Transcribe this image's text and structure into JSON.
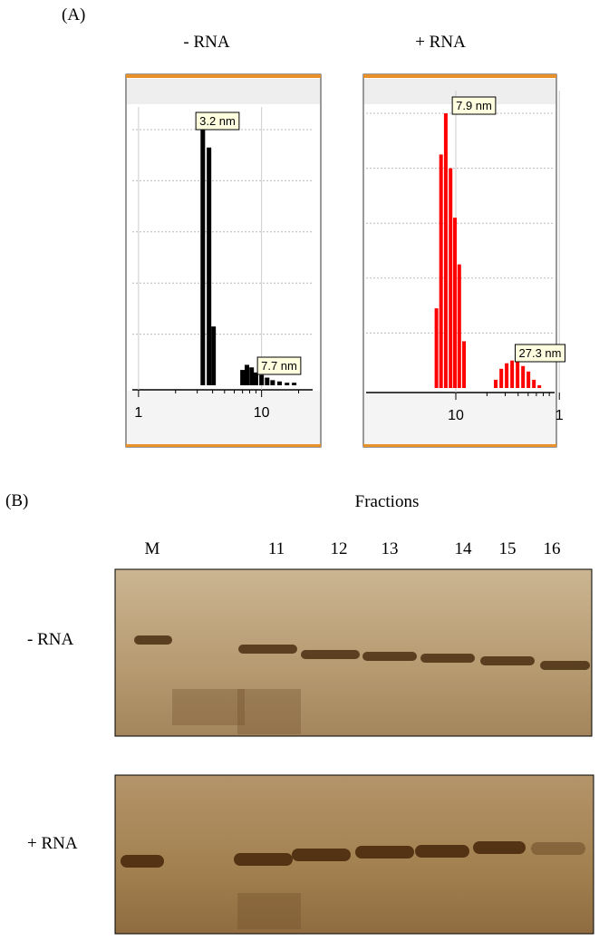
{
  "panel_labels": [
    "(A)",
    "(B)"
  ],
  "chart_data": [
    {
      "type": "bar",
      "title": "- RNA",
      "log_x": true,
      "grid": true,
      "color": "#000000",
      "xlim": [
        0.89,
        26
      ],
      "xticks": [
        1,
        10
      ],
      "ylim": [
        0,
        100
      ],
      "x": [
        3.33,
        3.74,
        4.07,
        7.0,
        7.6,
        8.3,
        9.0,
        10.0,
        11.1,
        12.3,
        14.0,
        16.1,
        18.4
      ],
      "values": [
        100,
        93,
        23,
        6,
        8,
        7,
        5,
        4,
        3,
        2,
        1.5,
        1,
        1
      ],
      "annotations": [
        "3.2 nm",
        "7.7 nm"
      ]
    },
    {
      "type": "bar",
      "title": "+ RNA",
      "log_x": true,
      "grid": true,
      "color": "#ff0000",
      "xlim": [
        1.36,
        90
      ],
      "xticks": [
        10,
        {
          "value": 100,
          "label": "1"
        }
      ],
      "ylim": [
        0,
        100
      ],
      "x": [
        6.5,
        7.2,
        8.0,
        8.9,
        9.8,
        10.8,
        12.0,
        24.3,
        27.5,
        31.0,
        35.0,
        39.5,
        44.6,
        50.3,
        56.8,
        64.1
      ],
      "values": [
        29,
        85,
        100,
        80,
        62,
        45,
        17,
        3,
        7,
        9,
        10,
        10,
        8,
        6,
        3,
        1
      ],
      "annotations": [
        "7.9 nm",
        "27.3 nm"
      ]
    }
  ],
  "gel": {
    "title": "Fractions",
    "lanes": [
      "M",
      "11",
      "12",
      "13",
      "14",
      "15",
      "16"
    ],
    "rows": [
      "- RNA",
      "+ RNA"
    ]
  }
}
